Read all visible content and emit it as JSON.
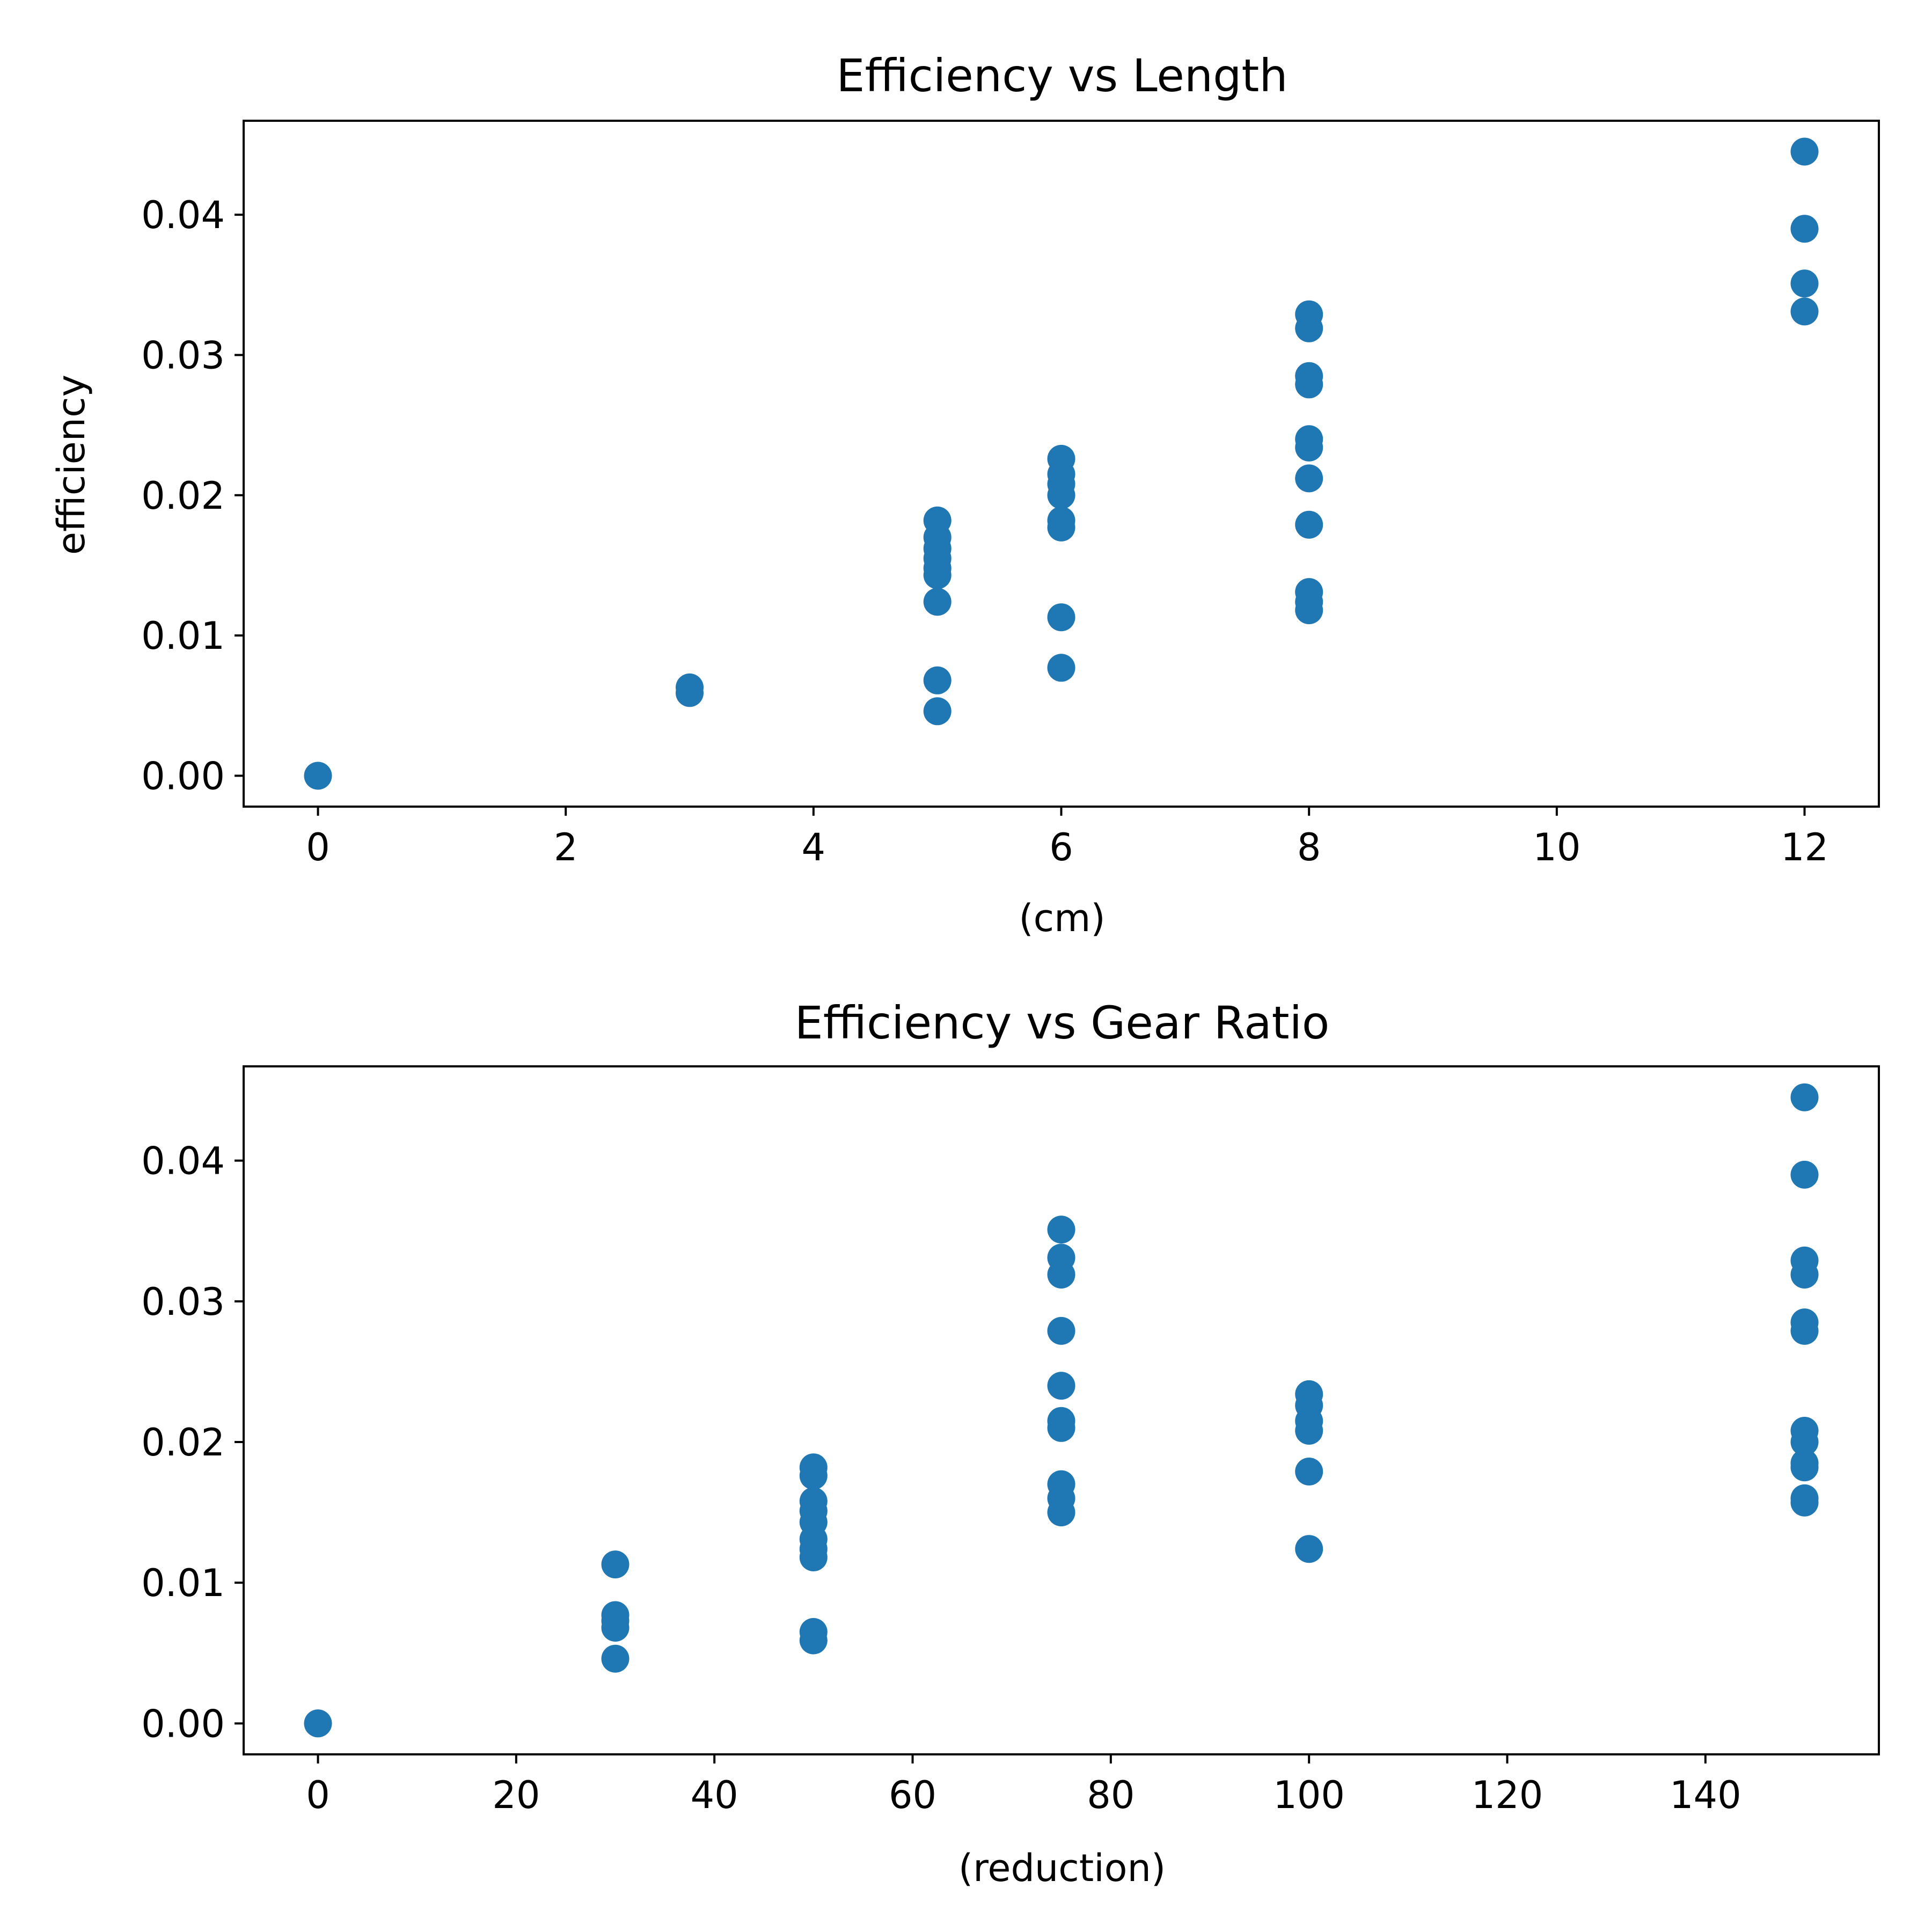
{
  "marker_color": "#1f77b4",
  "chart_data": [
    {
      "type": "scatter",
      "title": "Efficiency vs Length",
      "xlabel": "(cm)",
      "ylabel": "efficiency",
      "xlim": [
        -0.6,
        12.6
      ],
      "ylim": [
        -0.0022,
        0.0467
      ],
      "xticks": [
        0,
        2,
        4,
        6,
        8,
        10,
        12
      ],
      "xtick_labels": [
        "0",
        "2",
        "4",
        "6",
        "8",
        "10",
        "12"
      ],
      "yticks": [
        0,
        0.01,
        0.02,
        0.03,
        0.04
      ],
      "ytick_labels": [
        "0.00",
        "0.01",
        "0.02",
        "0.03",
        "0.04"
      ],
      "grid": false,
      "points": [
        [
          0,
          0.0
        ],
        [
          3,
          0.0063
        ],
        [
          3,
          0.0059
        ],
        [
          5,
          0.0182
        ],
        [
          5,
          0.017
        ],
        [
          5,
          0.0162
        ],
        [
          5,
          0.0155
        ],
        [
          5,
          0.0148
        ],
        [
          5,
          0.0143
        ],
        [
          5,
          0.0124
        ],
        [
          5,
          0.0068
        ],
        [
          5,
          0.0046
        ],
        [
          6,
          0.0226
        ],
        [
          6,
          0.0215
        ],
        [
          6,
          0.0208
        ],
        [
          6,
          0.02
        ],
        [
          6,
          0.0182
        ],
        [
          6,
          0.0177
        ],
        [
          6,
          0.0113
        ],
        [
          6,
          0.0077
        ],
        [
          8,
          0.0329
        ],
        [
          8,
          0.0319
        ],
        [
          8,
          0.0285
        ],
        [
          8,
          0.0279
        ],
        [
          8,
          0.024
        ],
        [
          8,
          0.0234
        ],
        [
          8,
          0.0212
        ],
        [
          8,
          0.0179
        ],
        [
          8,
          0.0131
        ],
        [
          8,
          0.0124
        ],
        [
          8,
          0.0118
        ],
        [
          12,
          0.0445
        ],
        [
          12,
          0.039
        ],
        [
          12,
          0.0351
        ],
        [
          12,
          0.0331
        ]
      ]
    },
    {
      "type": "scatter",
      "title": "Efficiency vs Gear Ratio",
      "xlabel": "(reduction)",
      "ylabel": "",
      "xlim": [
        -7.5,
        157.5
      ],
      "ylim": [
        -0.0022,
        0.0467
      ],
      "xticks": [
        0,
        20,
        40,
        60,
        80,
        100,
        120,
        140
      ],
      "xtick_labels": [
        "0",
        "20",
        "40",
        "60",
        "80",
        "100",
        "120",
        "140"
      ],
      "yticks": [
        0,
        0.01,
        0.02,
        0.03,
        0.04
      ],
      "ytick_labels": [
        "0.00",
        "0.01",
        "0.02",
        "0.03",
        "0.04"
      ],
      "grid": false,
      "points": [
        [
          0,
          0.0
        ],
        [
          30,
          0.0113
        ],
        [
          30,
          0.0077
        ],
        [
          30,
          0.0073
        ],
        [
          30,
          0.0068
        ],
        [
          30,
          0.0046
        ],
        [
          50,
          0.0182
        ],
        [
          50,
          0.0176
        ],
        [
          50,
          0.0158
        ],
        [
          50,
          0.0151
        ],
        [
          50,
          0.0143
        ],
        [
          50,
          0.0131
        ],
        [
          50,
          0.0124
        ],
        [
          50,
          0.0118
        ],
        [
          50,
          0.0065
        ],
        [
          50,
          0.0059
        ],
        [
          75,
          0.0351
        ],
        [
          75,
          0.0331
        ],
        [
          75,
          0.0319
        ],
        [
          75,
          0.0279
        ],
        [
          75,
          0.024
        ],
        [
          75,
          0.0215
        ],
        [
          75,
          0.021
        ],
        [
          75,
          0.017
        ],
        [
          75,
          0.016
        ],
        [
          75,
          0.015
        ],
        [
          100,
          0.0234
        ],
        [
          100,
          0.0226
        ],
        [
          100,
          0.0215
        ],
        [
          100,
          0.0208
        ],
        [
          100,
          0.0179
        ],
        [
          100,
          0.0124
        ],
        [
          150,
          0.0445
        ],
        [
          150,
          0.039
        ],
        [
          150,
          0.0329
        ],
        [
          150,
          0.0319
        ],
        [
          150,
          0.0285
        ],
        [
          150,
          0.0279
        ],
        [
          150,
          0.0208
        ],
        [
          150,
          0.02
        ],
        [
          150,
          0.0185
        ],
        [
          150,
          0.0182
        ],
        [
          150,
          0.016
        ],
        [
          150,
          0.0157
        ]
      ]
    }
  ]
}
